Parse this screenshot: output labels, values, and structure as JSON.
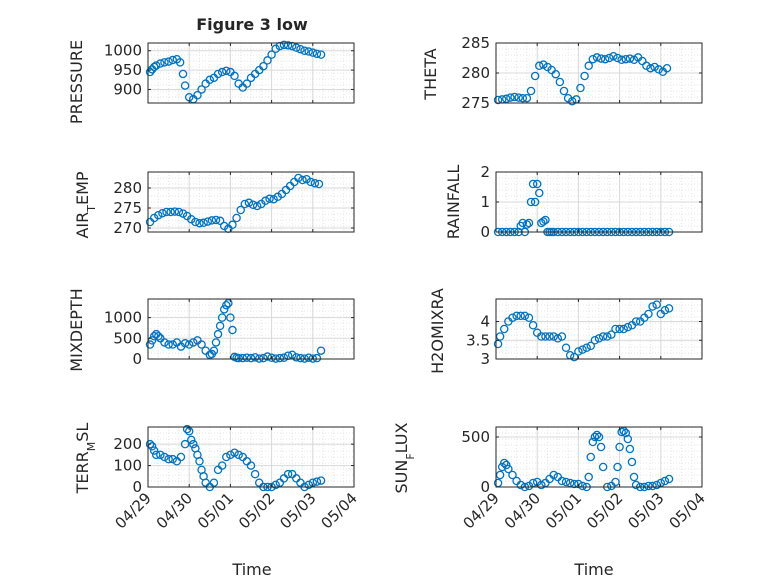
{
  "figure": {
    "title": "Figure 3 low",
    "background": "#ffffff"
  },
  "style": {
    "marker_color": "#0072BD",
    "axis_color": "#262626",
    "grid_color": "#d9d9d9"
  },
  "chart_data": [
    {
      "type": "scatter",
      "title": "Figure 3 low",
      "xlabel": "",
      "ylabel": "PRESSURE",
      "ylim": [
        865,
        1020
      ],
      "yticks": [
        900,
        950,
        1000
      ],
      "xlim": [
        0,
        5
      ],
      "xticks": [
        0,
        1,
        2,
        3,
        4,
        5
      ],
      "xticklabels": [
        "",
        "",
        "",
        "",
        "",
        ""
      ],
      "grid": true,
      "series": [
        {
          "x": [
            0.05,
            0.1,
            0.15,
            0.2,
            0.3,
            0.4,
            0.5,
            0.6,
            0.7,
            0.78,
            0.85,
            0.9,
            1.0,
            1.1,
            1.2,
            1.3,
            1.4,
            1.5,
            1.6,
            1.7,
            1.8,
            1.9,
            2.0,
            2.1,
            2.2,
            2.3,
            2.4,
            2.5,
            2.6,
            2.7,
            2.8,
            2.9,
            3.0,
            3.1,
            3.2,
            3.3,
            3.4,
            3.5,
            3.6,
            3.7,
            3.8,
            3.9,
            4.0,
            4.1,
            4.2
          ],
          "y": [
            945,
            952,
            958,
            962,
            967,
            970,
            972,
            976,
            978,
            970,
            940,
            910,
            880,
            875,
            885,
            900,
            915,
            925,
            930,
            940,
            945,
            948,
            945,
            935,
            915,
            905,
            915,
            930,
            940,
            950,
            960,
            975,
            990,
            1005,
            1012,
            1015,
            1014,
            1012,
            1008,
            1004,
            1000,
            998,
            995,
            992,
            990
          ]
        }
      ]
    },
    {
      "type": "scatter",
      "xlabel": "",
      "ylabel": "THETA",
      "ylim": [
        275,
        285
      ],
      "yticks": [
        275,
        280,
        285
      ],
      "xlim": [
        0,
        5
      ],
      "xticks": [
        0,
        1,
        2,
        3,
        4,
        5
      ],
      "xticklabels": [
        "",
        "",
        "",
        "",
        "",
        ""
      ],
      "grid": true,
      "series": [
        {
          "x": [
            0.05,
            0.15,
            0.25,
            0.35,
            0.45,
            0.55,
            0.65,
            0.75,
            0.85,
            0.95,
            1.05,
            1.15,
            1.25,
            1.35,
            1.45,
            1.55,
            1.65,
            1.75,
            1.85,
            1.95,
            2.05,
            2.15,
            2.25,
            2.35,
            2.45,
            2.55,
            2.65,
            2.75,
            2.85,
            2.95,
            3.05,
            3.15,
            3.25,
            3.35,
            3.45,
            3.55,
            3.65,
            3.75,
            3.85,
            3.95,
            4.05,
            4.15
          ],
          "y": [
            275.5,
            275.6,
            275.7,
            275.9,
            276.0,
            275.9,
            275.8,
            275.8,
            277.0,
            279.5,
            281.2,
            281.4,
            281.0,
            280.5,
            279.8,
            278.5,
            277.0,
            275.8,
            275.3,
            275.6,
            277.5,
            279.5,
            281.2,
            282.3,
            282.6,
            282.4,
            282.3,
            282.5,
            282.8,
            282.5,
            282.2,
            282.3,
            282.4,
            282.2,
            282.6,
            282.0,
            281.2,
            280.8,
            281.0,
            280.6,
            280.2,
            280.8
          ]
        }
      ]
    },
    {
      "type": "scatter",
      "xlabel": "",
      "ylabel": "AIR_TEMP",
      "ylim": [
        269,
        284
      ],
      "yticks": [
        270,
        275,
        280
      ],
      "xlim": [
        0,
        5
      ],
      "xticks": [
        0,
        1,
        2,
        3,
        4,
        5
      ],
      "xticklabels": [
        "",
        "",
        "",
        "",
        "",
        ""
      ],
      "grid": true,
      "series": [
        {
          "x": [
            0.05,
            0.15,
            0.25,
            0.35,
            0.45,
            0.55,
            0.65,
            0.75,
            0.85,
            0.95,
            1.05,
            1.15,
            1.25,
            1.35,
            1.45,
            1.55,
            1.65,
            1.75,
            1.85,
            1.95,
            2.05,
            2.15,
            2.25,
            2.35,
            2.45,
            2.55,
            2.65,
            2.75,
            2.85,
            2.95,
            3.05,
            3.15,
            3.25,
            3.35,
            3.45,
            3.55,
            3.65,
            3.75,
            3.85,
            3.95,
            4.05,
            4.15
          ],
          "y": [
            271.5,
            272.5,
            273.2,
            273.7,
            274.0,
            274.0,
            274.1,
            274.0,
            273.6,
            273.0,
            272.2,
            271.5,
            271.2,
            271.3,
            271.6,
            271.9,
            272.0,
            271.8,
            270.5,
            269.8,
            270.8,
            272.5,
            274.5,
            276.0,
            276.3,
            275.8,
            275.5,
            276.0,
            276.8,
            277.3,
            277.2,
            277.8,
            278.5,
            279.5,
            280.5,
            281.5,
            282.5,
            282.0,
            282.2,
            281.5,
            281.2,
            281.0
          ]
        }
      ]
    },
    {
      "type": "scatter",
      "xlabel": "",
      "ylabel": "RAINFALL",
      "ylim": [
        0,
        2
      ],
      "yticks": [
        0,
        1,
        2
      ],
      "xlim": [
        0,
        5
      ],
      "xticks": [
        0,
        1,
        2,
        3,
        4,
        5
      ],
      "xticklabels": [
        "",
        "",
        "",
        "",
        "",
        ""
      ],
      "grid": true,
      "series": [
        {
          "x": [
            0.05,
            0.15,
            0.25,
            0.35,
            0.45,
            0.55,
            0.6,
            0.65,
            0.7,
            0.75,
            0.8,
            0.85,
            0.9,
            0.95,
            1.0,
            1.05,
            1.1,
            1.15,
            1.2,
            1.25,
            1.3,
            1.35,
            1.4,
            1.5,
            1.6,
            1.7,
            1.8,
            1.9,
            2.0,
            2.1,
            2.2,
            2.3,
            2.4,
            2.5,
            2.6,
            2.7,
            2.8,
            2.9,
            3.0,
            3.1,
            3.2,
            3.3,
            3.4,
            3.5,
            3.6,
            3.7,
            3.8,
            3.9,
            4.0,
            4.1,
            4.2
          ],
          "y": [
            0,
            0,
            0,
            0,
            0,
            0,
            0.2,
            0.3,
            0,
            0.25,
            0.3,
            1.0,
            1.6,
            1.0,
            1.6,
            1.3,
            0.3,
            0.35,
            0.4,
            0,
            0,
            0,
            0,
            0,
            0,
            0,
            0,
            0,
            0,
            0,
            0,
            0,
            0,
            0,
            0,
            0,
            0,
            0,
            0,
            0,
            0,
            0,
            0,
            0,
            0,
            0,
            0,
            0,
            0,
            0,
            0
          ]
        }
      ]
    },
    {
      "type": "scatter",
      "xlabel": "",
      "ylabel": "MIXDEPTH",
      "ylim": [
        0,
        1450
      ],
      "yticks": [
        0,
        500,
        1000
      ],
      "xlim": [
        0,
        5
      ],
      "xticks": [
        0,
        1,
        2,
        3,
        4,
        5
      ],
      "xticklabels": [
        "",
        "",
        "",
        "",
        "",
        ""
      ],
      "grid": true,
      "series": [
        {
          "x": [
            0.05,
            0.1,
            0.15,
            0.2,
            0.25,
            0.3,
            0.4,
            0.5,
            0.6,
            0.7,
            0.8,
            0.9,
            1.0,
            1.1,
            1.2,
            1.3,
            1.4,
            1.5,
            1.55,
            1.6,
            1.65,
            1.7,
            1.75,
            1.8,
            1.85,
            1.9,
            1.95,
            2.0,
            2.05,
            2.1,
            2.15,
            2.2,
            2.3,
            2.4,
            2.5,
            2.6,
            2.7,
            2.8,
            2.9,
            3.0,
            3.1,
            3.2,
            3.3,
            3.4,
            3.5,
            3.6,
            3.7,
            3.8,
            3.9,
            4.0,
            4.1,
            4.2
          ],
          "y": [
            350,
            450,
            550,
            600,
            550,
            500,
            400,
            350,
            350,
            400,
            300,
            380,
            350,
            400,
            450,
            350,
            200,
            100,
            120,
            200,
            400,
            600,
            800,
            1000,
            1200,
            1300,
            1350,
            1000,
            700,
            50,
            30,
            20,
            20,
            30,
            20,
            40,
            10,
            20,
            60,
            30,
            10,
            20,
            30,
            80,
            100,
            40,
            20,
            10,
            30,
            10,
            20,
            200
          ]
        }
      ]
    },
    {
      "type": "scatter",
      "xlabel": "",
      "ylabel": "H2OMIXRA",
      "ylim": [
        3,
        4.6
      ],
      "yticks": [
        3,
        3.5,
        4
      ],
      "xlim": [
        0,
        5
      ],
      "xticks": [
        0,
        1,
        2,
        3,
        4,
        5
      ],
      "xticklabels": [
        "",
        "",
        "",
        "",
        "",
        ""
      ],
      "grid": true,
      "series": [
        {
          "x": [
            0.05,
            0.1,
            0.2,
            0.3,
            0.4,
            0.5,
            0.6,
            0.7,
            0.8,
            0.9,
            1.0,
            1.1,
            1.2,
            1.3,
            1.4,
            1.5,
            1.6,
            1.7,
            1.8,
            1.9,
            2.0,
            2.1,
            2.2,
            2.3,
            2.4,
            2.5,
            2.6,
            2.7,
            2.8,
            2.9,
            3.0,
            3.1,
            3.2,
            3.3,
            3.4,
            3.5,
            3.6,
            3.7,
            3.8,
            3.9,
            4.0,
            4.1,
            4.2
          ],
          "y": [
            3.4,
            3.6,
            3.8,
            4.0,
            4.1,
            4.15,
            4.15,
            4.15,
            4.1,
            3.9,
            3.7,
            3.6,
            3.6,
            3.6,
            3.6,
            3.55,
            3.6,
            3.3,
            3.1,
            3.05,
            3.2,
            3.25,
            3.3,
            3.35,
            3.5,
            3.55,
            3.6,
            3.6,
            3.65,
            3.8,
            3.8,
            3.8,
            3.85,
            3.9,
            4.0,
            4.0,
            4.1,
            4.2,
            4.4,
            4.45,
            4.2,
            4.3,
            4.35
          ]
        }
      ]
    },
    {
      "type": "scatter",
      "xlabel": "Time",
      "ylabel": "TERR_MSL",
      "ylim": [
        0,
        280
      ],
      "yticks": [
        0,
        100,
        200
      ],
      "xlim": [
        0,
        5
      ],
      "xticks": [
        0,
        1,
        2,
        3,
        4,
        5
      ],
      "xticklabels": [
        "04/29",
        "04/30",
        "05/01",
        "05/02",
        "05/03",
        "05/04"
      ],
      "grid": true,
      "series": [
        {
          "x": [
            0.05,
            0.1,
            0.15,
            0.2,
            0.3,
            0.4,
            0.5,
            0.6,
            0.7,
            0.8,
            0.9,
            0.95,
            1.0,
            1.05,
            1.1,
            1.15,
            1.2,
            1.25,
            1.3,
            1.35,
            1.4,
            1.5,
            1.6,
            1.7,
            1.8,
            1.9,
            2.0,
            2.1,
            2.2,
            2.3,
            2.4,
            2.5,
            2.6,
            2.7,
            2.8,
            2.9,
            3.0,
            3.1,
            3.2,
            3.3,
            3.4,
            3.5,
            3.6,
            3.7,
            3.8,
            3.9,
            4.0,
            4.1,
            4.2
          ],
          "y": [
            200,
            190,
            170,
            150,
            150,
            140,
            130,
            130,
            120,
            140,
            200,
            270,
            260,
            220,
            200,
            180,
            150,
            120,
            80,
            50,
            20,
            0,
            20,
            80,
            100,
            140,
            150,
            160,
            150,
            140,
            120,
            100,
            60,
            20,
            0,
            0,
            0,
            10,
            20,
            40,
            60,
            60,
            40,
            20,
            0,
            10,
            20,
            25,
            30
          ]
        }
      ]
    },
    {
      "type": "scatter",
      "xlabel": "Time",
      "ylabel": "SUN_FLUX",
      "ylim": [
        0,
        600
      ],
      "yticks": [
        0,
        500
      ],
      "xlim": [
        0,
        5
      ],
      "xticks": [
        0,
        1,
        2,
        3,
        4,
        5
      ],
      "xticklabels": [
        "04/29",
        "04/30",
        "05/01",
        "05/02",
        "05/03",
        "05/04"
      ],
      "grid": true,
      "series": [
        {
          "x": [
            0.05,
            0.1,
            0.15,
            0.2,
            0.25,
            0.3,
            0.4,
            0.5,
            0.6,
            0.7,
            0.8,
            0.9,
            1.0,
            1.1,
            1.2,
            1.3,
            1.4,
            1.5,
            1.6,
            1.7,
            1.8,
            1.9,
            2.0,
            2.1,
            2.2,
            2.25,
            2.3,
            2.35,
            2.4,
            2.45,
            2.5,
            2.55,
            2.6,
            2.7,
            2.8,
            2.9,
            2.95,
            3.0,
            3.05,
            3.1,
            3.15,
            3.2,
            3.25,
            3.3,
            3.35,
            3.4,
            3.5,
            3.6,
            3.7,
            3.8,
            3.9,
            4.0,
            4.1,
            4.2
          ],
          "y": [
            40,
            120,
            200,
            240,
            220,
            180,
            120,
            60,
            20,
            0,
            10,
            40,
            50,
            20,
            40,
            80,
            120,
            100,
            60,
            50,
            40,
            30,
            30,
            10,
            0,
            100,
            300,
            450,
            500,
            520,
            500,
            400,
            200,
            0,
            10,
            50,
            200,
            400,
            550,
            560,
            540,
            480,
            380,
            250,
            100,
            20,
            0,
            0,
            10,
            10,
            20,
            40,
            60,
            80
          ]
        }
      ]
    }
  ],
  "axis_labels": {
    "pressure": "PRESSURE",
    "theta": "THETA",
    "rainfall": "RAINFALL",
    "mixdepth": "MIXDEPTH",
    "h2omixra": "H2OMIXRA",
    "air_temp": {
      "base": "AIR",
      "sub": "T",
      "rest": "EMP"
    },
    "terr_msl": {
      "base": "TERR",
      "sub": "M",
      "rest": "SL"
    },
    "sun_flux": {
      "base": "SUN",
      "sub": "F",
      "rest": "LUX"
    },
    "time": "Time"
  }
}
